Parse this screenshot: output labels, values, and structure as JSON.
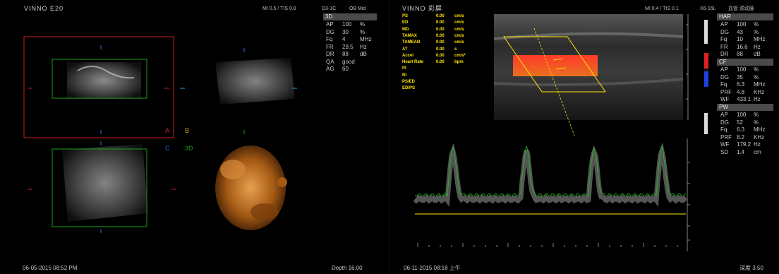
{
  "left": {
    "logo": "VINNO E20",
    "header": "MI 0.5 / TIS 0.8",
    "probe": "D3-1C",
    "preset": "OB Mid",
    "mode_label": "3D",
    "params": [
      {
        "name": "AP",
        "value": "100",
        "unit": "%"
      },
      {
        "name": "DG",
        "value": "30",
        "unit": "%"
      },
      {
        "name": "Fq",
        "value": "4",
        "unit": "MHz"
      },
      {
        "name": "FR",
        "value": "29.5",
        "unit": "Hz"
      },
      {
        "name": "DR",
        "value": "88",
        "unit": "dB"
      },
      {
        "name": "QA",
        "value": "good",
        "unit": ""
      },
      {
        "name": "AG",
        "value": "60",
        "unit": ""
      }
    ],
    "quadrant_labels": {
      "a": "A",
      "b": "B",
      "c": "C",
      "d": "3D"
    },
    "datetime": "06-05-2015 08:52 PM",
    "depth": "Depth 16.00"
  },
  "right": {
    "logo": "VINNO 彩屏",
    "header": "MI 0.4 / TIS 0.1",
    "probe": "X6-16L",
    "preset": "血管 颈动脉",
    "measurements": [
      {
        "name": "PS",
        "value": "0.00",
        "unit": "cm/s"
      },
      {
        "name": "ED",
        "value": "0.00",
        "unit": "cm/s"
      },
      {
        "name": "MD",
        "value": "0.00",
        "unit": "cm/s"
      },
      {
        "name": "TAMAX",
        "value": "0.00",
        "unit": "cm/s"
      },
      {
        "name": "TAMEAN",
        "value": "0.00",
        "unit": "cm/s"
      },
      {
        "name": "AT",
        "value": "0.00",
        "unit": "s"
      },
      {
        "name": "Accel",
        "value": "0.00",
        "unit": "cm/s²"
      },
      {
        "name": "Heart Rate",
        "value": "0.00",
        "unit": "bpm"
      },
      {
        "name": "PI",
        "value": "",
        "unit": ""
      },
      {
        "name": "RI",
        "value": "",
        "unit": ""
      },
      {
        "name": "PS/ED",
        "value": "",
        "unit": ""
      },
      {
        "name": "ED/PS",
        "value": "",
        "unit": ""
      }
    ],
    "sections": [
      {
        "title": "HAR",
        "rows": [
          {
            "name": "AP",
            "value": "100",
            "unit": "%"
          },
          {
            "name": "DG",
            "value": "43",
            "unit": "%"
          },
          {
            "name": "Fq",
            "value": "10",
            "unit": "MHz"
          },
          {
            "name": "FR",
            "value": "16.6",
            "unit": "Hz"
          },
          {
            "name": "DR",
            "value": "88",
            "unit": "dB"
          }
        ]
      },
      {
        "title": "CF",
        "rows": [
          {
            "name": "AP",
            "value": "100",
            "unit": "%"
          },
          {
            "name": "DG",
            "value": "35",
            "unit": "%"
          },
          {
            "name": "Fq",
            "value": "6.3",
            "unit": "MHz"
          },
          {
            "name": "PRF",
            "value": "4.8",
            "unit": "KHz"
          },
          {
            "name": "WF",
            "value": "433.1",
            "unit": "Hz"
          }
        ]
      },
      {
        "title": "PW",
        "rows": [
          {
            "name": "AP",
            "value": "100",
            "unit": "%"
          },
          {
            "name": "DG",
            "value": "52",
            "unit": "%"
          },
          {
            "name": "Fq",
            "value": "6.3",
            "unit": "MHz"
          },
          {
            "name": "PRF",
            "value": "8.2",
            "unit": "KHz"
          },
          {
            "name": "WF",
            "value": "179.2",
            "unit": "Hz"
          },
          {
            "name": "SD",
            "value": "1.4",
            "unit": "cm"
          }
        ]
      }
    ],
    "datetime": "06-11-2015 08:18 上午",
    "depth": "深度 3.50"
  },
  "colors": {
    "accent_red": "#d02020",
    "accent_green": "#1aa01a",
    "accent_yellow": "#ffe400",
    "doppler_red": "#d81818",
    "orange_3d": "#c87a20"
  }
}
